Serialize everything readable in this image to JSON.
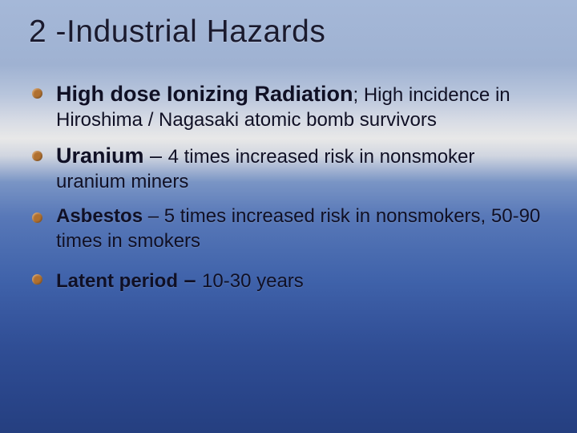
{
  "title": "2 -Industrial Hazards",
  "bullets": {
    "b1": {
      "lead": "High dose Ionizing Radiation",
      "sep": "; ",
      "tail": "High incidence in Hiroshima / Nagasaki atomic bomb survivors"
    },
    "b2": {
      "lead": "Uranium",
      "dash": " – ",
      "tail1": "4 times increased risk in nonsmoker uranium miners"
    },
    "b3": {
      "lead": "Asbestos",
      "tail": " – 5 times increased risk in nonsmokers, 50-90 times in smokers"
    },
    "b4": {
      "lead": "Latent period",
      "dash": " – ",
      "tail": "10-30 years"
    }
  },
  "style": {
    "slide_width": 720,
    "slide_height": 540,
    "title_fontsize": 39,
    "title_color": "#1a1a2e",
    "bullet_color": "#b07030",
    "text_color": "#101025",
    "lead_fontsize": 27,
    "body_fontsize": 24,
    "background_gradient": [
      "#a5b8d8",
      "#9fb2d2",
      "#b8c5dc",
      "#d8dce5",
      "#e8e8e8",
      "#d0d5e0",
      "#7a95c5",
      "#5878b8",
      "#4a6cb0",
      "#3f62aa",
      "#3858a0",
      "#304e95",
      "#2a468b",
      "#253f80"
    ]
  }
}
